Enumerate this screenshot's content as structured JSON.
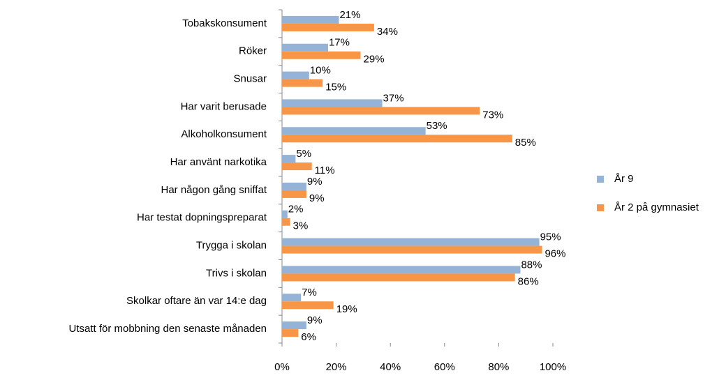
{
  "chart_data": {
    "type": "bar",
    "orientation": "horizontal",
    "categories": [
      "Tobakskonsument",
      "Röker",
      "Snusar",
      "Har varit berusade",
      "Alkoholkonsument",
      "Har använt narkotika",
      "Har någon gång sniffat",
      "Har testat dopningspreparat",
      "Trygga i skolan",
      "Trivs i skolan",
      "Skolkar oftare än var 14:e dag",
      "Utsatt för mobbning den senaste månaden"
    ],
    "series": [
      {
        "name": "År 9",
        "color": "#95b3d7",
        "values": [
          21,
          17,
          10,
          37,
          53,
          5,
          9,
          2,
          95,
          88,
          7,
          9
        ],
        "value_labels": [
          "21%",
          "17%",
          "10%",
          "37%",
          "53%",
          "5%",
          "9%",
          "2%",
          "95%",
          "88%",
          "7%",
          "9%"
        ]
      },
      {
        "name": "År 2 på gymnasiet",
        "color": "#f79646",
        "values": [
          34,
          29,
          15,
          73,
          85,
          11,
          9,
          3,
          96,
          86,
          19,
          6
        ],
        "value_labels": [
          "34%",
          "29%",
          "15%",
          "73%",
          "85%",
          "11%",
          "9%",
          "3%",
          "96%",
          "86%",
          "19%",
          "6%"
        ]
      }
    ],
    "xlim": [
      0,
      100
    ],
    "xticks": [
      {
        "value": 0,
        "label": "0%"
      },
      {
        "value": 20,
        "label": "20%"
      },
      {
        "value": 40,
        "label": "40%"
      },
      {
        "value": 60,
        "label": "60%"
      },
      {
        "value": 80,
        "label": "80%"
      },
      {
        "value": 100,
        "label": "100%"
      }
    ],
    "legend": "right"
  }
}
